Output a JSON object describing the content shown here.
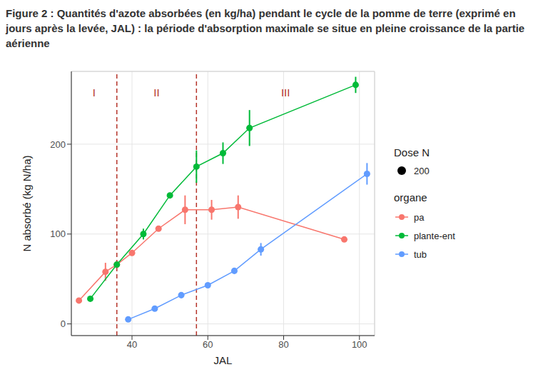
{
  "chart_data": {
    "type": "line",
    "title": "Figure 2 : Quantités d'azote absorbées (en kg/ha) pendant le cycle de la pomme de terre (exprimé en jours après la levée, JAL) : la période d'absorption maximale se situe en pleine croissance de la partie aérienne",
    "x_label": "JAL",
    "y_label": "N absorbé (kg N/ha)",
    "xlim": [
      24,
      104
    ],
    "xticks": [
      40,
      60,
      80,
      100
    ],
    "ylim": [
      -13,
      281
    ],
    "yticks": [
      0,
      100,
      200
    ],
    "grid": true,
    "marker": "circle",
    "legend": "right",
    "vlines": [
      36,
      57
    ],
    "periods": [
      "I",
      "II",
      "III"
    ],
    "dose_legend": {
      "title": "Dose N",
      "values": [
        200
      ]
    },
    "series_legend_title": "organe",
    "series": [
      {
        "name": "pa",
        "color": "#F8766D",
        "x": [
          26,
          33,
          36,
          40,
          47,
          54,
          61,
          68,
          96
        ],
        "values": [
          26,
          58,
          66,
          79,
          106,
          127,
          127,
          130,
          94
        ],
        "errors": [
          2,
          10,
          3,
          3,
          3,
          16,
          11,
          13,
          2
        ]
      },
      {
        "name": "plante-ent",
        "color": "#00BA38",
        "x": [
          29,
          36,
          43,
          50,
          57,
          64,
          71,
          99
        ],
        "values": [
          28,
          66,
          100,
          143,
          175,
          190,
          218,
          266
        ],
        "errors": [
          2,
          3,
          6,
          3,
          18,
          12,
          20,
          9
        ]
      },
      {
        "name": "tub",
        "color": "#619CFF",
        "x": [
          39,
          46,
          53,
          60,
          67,
          74,
          102
        ],
        "values": [
          5,
          17,
          32,
          43,
          59,
          83,
          167
        ],
        "errors": [
          2,
          2,
          2,
          2,
          2,
          7,
          12
        ]
      }
    ]
  }
}
